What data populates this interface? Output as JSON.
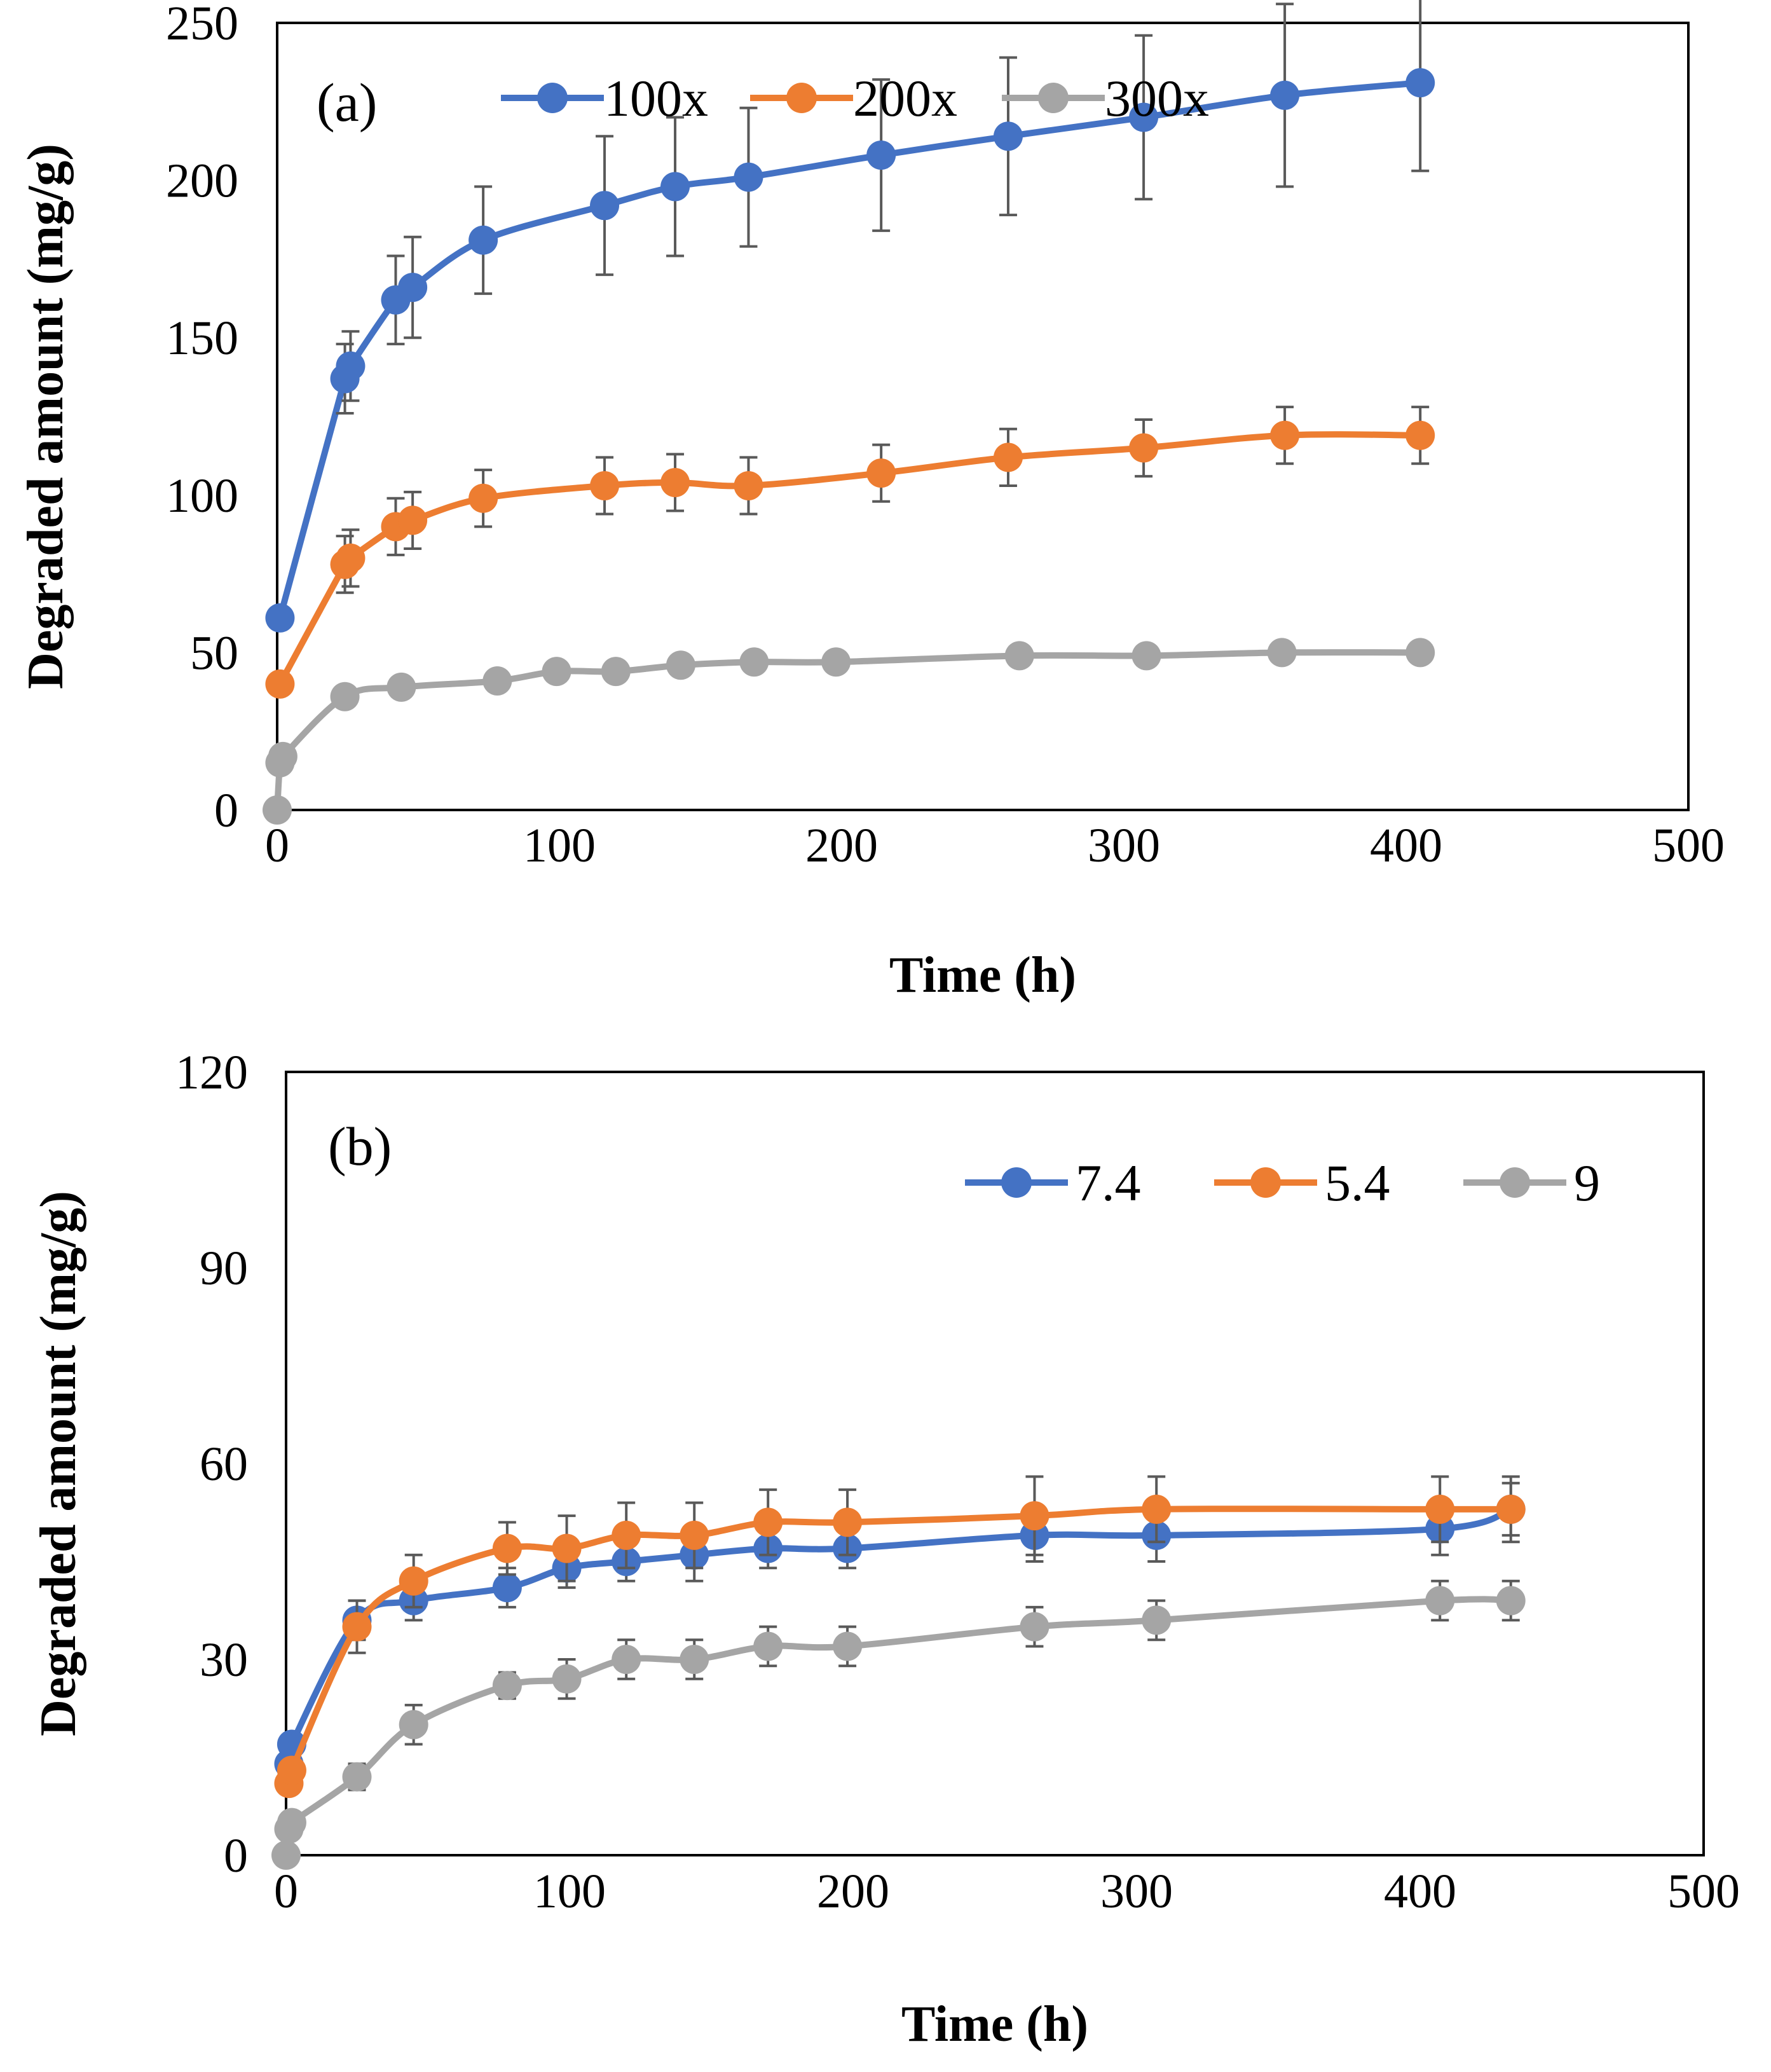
{
  "chart_data": [
    {
      "type": "line",
      "panel_label": "(a)",
      "xlabel": "Time (h)",
      "ylabel": "Degraded amount (mg/g)",
      "xlim": [
        0,
        500
      ],
      "ylim": [
        0,
        250
      ],
      "x_ticks": [
        0,
        100,
        200,
        300,
        400,
        500
      ],
      "y_ticks": [
        0,
        50,
        100,
        150,
        200,
        250
      ],
      "legend_position": "top",
      "series": [
        {
          "name": "100x",
          "color": "#4472C4",
          "x": [
            1,
            24,
            26,
            42,
            48,
            73,
            116,
            141,
            167,
            214,
            259,
            307,
            357,
            405
          ],
          "y": [
            61,
            137,
            141,
            162,
            166,
            181,
            192,
            198,
            201,
            208,
            214,
            220,
            227,
            231
          ],
          "err": [
            0,
            11,
            11,
            14,
            16,
            17,
            22,
            22,
            22,
            24,
            25,
            26,
            29,
            28
          ]
        },
        {
          "name": "200x",
          "color": "#ED7D31",
          "x": [
            1,
            24,
            26,
            42,
            48,
            73,
            116,
            141,
            167,
            214,
            259,
            307,
            357,
            405
          ],
          "y": [
            40,
            78,
            80,
            90,
            92,
            99,
            103,
            104,
            103,
            107,
            112,
            115,
            119,
            119
          ],
          "err": [
            0,
            9,
            9,
            9,
            9,
            9,
            9,
            9,
            9,
            9,
            9,
            9,
            9,
            9
          ]
        },
        {
          "name": "300x",
          "color": "#A5A5A5",
          "x": [
            0,
            1,
            2,
            24,
            44,
            78,
            99,
            120,
            143,
            169,
            198,
            263,
            308,
            356,
            405
          ],
          "y": [
            0,
            15,
            17,
            36,
            39,
            41,
            44,
            44,
            46,
            47,
            47,
            49,
            49,
            50,
            50
          ],
          "err": [
            0,
            0,
            0,
            0,
            0,
            0,
            0,
            0,
            0,
            0,
            0,
            0,
            0,
            0,
            0
          ]
        }
      ]
    },
    {
      "type": "line",
      "panel_label": "(b)",
      "xlabel": "Time (h)",
      "ylabel": "Degraded amount (mg/g)",
      "xlim": [
        0,
        500
      ],
      "ylim": [
        0,
        120
      ],
      "x_ticks": [
        0,
        100,
        200,
        300,
        400,
        500
      ],
      "y_ticks": [
        0,
        30,
        60,
        90,
        120
      ],
      "legend_position": "top-right",
      "series": [
        {
          "name": "7.4",
          "color": "#4472C4",
          "x": [
            1,
            2,
            25,
            45,
            78,
            99,
            120,
            144,
            170,
            198,
            264,
            307,
            407,
            432
          ],
          "y": [
            14,
            17,
            36,
            39,
            41,
            44,
            45,
            46,
            47,
            47,
            49,
            49,
            50,
            53
          ],
          "err": [
            0,
            0,
            3,
            3,
            3,
            3,
            3,
            4,
            3,
            3,
            4,
            4,
            4,
            4
          ]
        },
        {
          "name": "5.4",
          "color": "#ED7D31",
          "x": [
            1,
            2,
            25,
            45,
            78,
            99,
            120,
            144,
            170,
            198,
            264,
            307,
            407,
            432
          ],
          "y": [
            11,
            13,
            35,
            42,
            47,
            47,
            49,
            49,
            51,
            51,
            52,
            53,
            53,
            53
          ],
          "err": [
            0,
            0,
            4,
            4,
            4,
            5,
            5,
            5,
            5,
            5,
            6,
            5,
            5,
            5
          ]
        },
        {
          "name": "9",
          "color": "#A5A5A5",
          "x": [
            0,
            1,
            2,
            25,
            45,
            78,
            99,
            120,
            144,
            170,
            198,
            264,
            307,
            407,
            432
          ],
          "y": [
            0,
            4,
            5,
            12,
            20,
            26,
            27,
            30,
            30,
            32,
            32,
            35,
            36,
            39,
            39
          ],
          "err": [
            0,
            0,
            0,
            2,
            3,
            2,
            3,
            3,
            3,
            3,
            3,
            3,
            3,
            3,
            3
          ]
        }
      ]
    }
  ]
}
